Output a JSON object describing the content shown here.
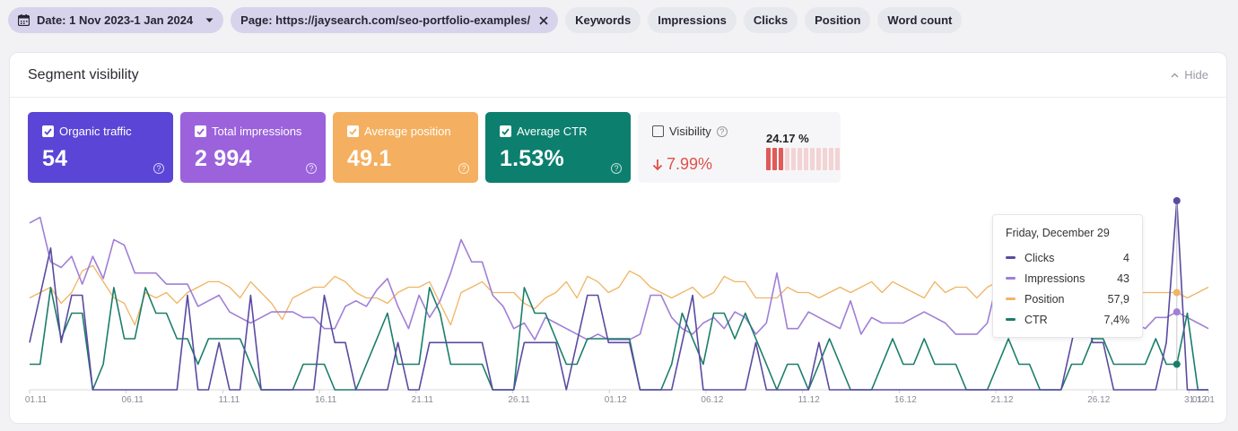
{
  "filters": {
    "date": "Date: 1 Nov 2023-1 Jan 2024",
    "page": "Page: https://jaysearch.com/seo-portfolio-examples/",
    "chips": [
      "Keywords",
      "Impressions",
      "Clicks",
      "Position",
      "Word count"
    ]
  },
  "panel": {
    "title": "Segment visibility",
    "hide_label": "Hide"
  },
  "metrics": [
    {
      "label": "Organic traffic",
      "value": "54",
      "color": "#5b45d6"
    },
    {
      "label": "Total impressions",
      "value": "2 994",
      "color": "#9b62dc"
    },
    {
      "label": "Average position",
      "value": "49.1",
      "color": "#f4b060"
    },
    {
      "label": "Average CTR",
      "value": "1.53%",
      "color": "#0d7f6e"
    }
  ],
  "visibility": {
    "label": "Visibility",
    "change": "7.99%",
    "percent": "24.17 %",
    "level": 0.2417
  },
  "tooltip": {
    "title": "Friday, December 29",
    "rows": [
      {
        "name": "Clicks",
        "value": "4",
        "color": "#5a4aa0"
      },
      {
        "name": "Impressions",
        "value": "43",
        "color": "#a07fd6"
      },
      {
        "name": "Position",
        "value": "57,9",
        "color": "#f0b563"
      },
      {
        "name": "CTR",
        "value": "7,4%",
        "color": "#1a7d6a"
      }
    ]
  },
  "chart_data": {
    "type": "line",
    "x_ticks": [
      "01.11",
      "06.11",
      "11.11",
      "16.11",
      "21.11",
      "26.11",
      "01.12",
      "06.12",
      "11.12",
      "16.12",
      "21.12",
      "26.12",
      "31.12",
      "01.01"
    ],
    "series": [
      {
        "name": "Clicks",
        "color": "#5a4aa0",
        "values": [
          1,
          2,
          3,
          1,
          2,
          2,
          0,
          0,
          0,
          0,
          0,
          0,
          0,
          0,
          0,
          2,
          0,
          0,
          1,
          0,
          0,
          2,
          0,
          0,
          0,
          0,
          0,
          0,
          2,
          1,
          1,
          0,
          0,
          0,
          0,
          1,
          0,
          0,
          1,
          1,
          1,
          1,
          1,
          1,
          0,
          0,
          0,
          1,
          1,
          1,
          1,
          0,
          1,
          2,
          2,
          1,
          1,
          1,
          0,
          0,
          0,
          0,
          1,
          2,
          0,
          0,
          0,
          0,
          0,
          1,
          0,
          0,
          0,
          0,
          0,
          1,
          0,
          0,
          0,
          0,
          0,
          0,
          0,
          0,
          0,
          0,
          0,
          0,
          0,
          0,
          0,
          0,
          0,
          0,
          0,
          0,
          0,
          0,
          0,
          1,
          2,
          1,
          1,
          0,
          0,
          0,
          0,
          0,
          1,
          4,
          0,
          0,
          0
        ]
      },
      {
        "name": "Impressions",
        "color": "#a07fd6",
        "values": [
          30,
          31,
          23,
          22,
          24,
          19,
          24,
          20,
          27,
          26,
          21,
          21,
          21,
          19,
          19,
          19,
          15,
          16,
          17,
          14,
          13,
          12,
          13,
          14,
          14,
          14,
          13,
          13,
          11,
          11,
          15,
          16,
          15,
          18,
          20,
          15,
          11,
          17,
          13,
          16,
          21,
          27,
          23,
          23,
          17,
          15,
          11,
          12,
          9,
          13,
          12,
          11,
          10,
          9,
          10,
          9,
          9,
          9,
          10,
          17,
          17,
          13,
          11,
          10,
          12,
          13,
          11,
          14,
          13,
          10,
          12,
          21,
          11,
          11,
          14,
          13,
          12,
          11,
          16,
          10,
          13,
          12,
          12,
          12,
          13,
          14,
          13,
          12,
          10,
          10,
          10,
          12,
          20,
          16,
          13,
          10,
          10,
          10,
          11,
          13,
          15,
          16,
          17,
          13,
          12,
          12,
          11,
          13,
          13,
          14,
          13,
          12,
          11
        ]
      },
      {
        "name": "Position",
        "color": "#f0b563",
        "values": [
          57,
          58,
          59,
          56,
          58,
          62,
          63,
          60,
          57,
          56,
          52,
          58,
          57,
          58,
          56,
          58,
          59,
          60,
          60,
          59,
          57,
          60,
          58,
          56,
          53,
          57,
          58,
          59,
          59,
          61,
          60,
          58,
          57,
          57,
          56,
          58,
          59,
          59,
          60,
          56,
          52,
          58,
          59,
          60,
          58,
          58,
          58,
          56,
          55,
          57,
          58,
          60,
          57,
          61,
          60,
          58,
          59,
          62,
          61,
          59,
          58,
          57,
          58,
          59,
          57,
          58,
          61,
          60,
          60,
          57,
          57,
          57,
          59,
          58,
          58,
          57,
          58,
          59,
          58,
          59,
          60,
          58,
          60,
          59,
          58,
          57,
          60,
          58,
          59,
          59,
          57,
          59,
          60,
          58,
          58,
          57,
          59,
          62,
          58,
          57,
          59,
          57,
          58,
          58,
          58,
          58,
          58,
          58,
          58,
          58,
          57,
          58,
          59
        ]
      },
      {
        "name": "CTR",
        "color": "#1a7d6a",
        "values": [
          1,
          1,
          4,
          2,
          3,
          3,
          0,
          1,
          4,
          2,
          2,
          4,
          3,
          3,
          2,
          2,
          1,
          2,
          2,
          2,
          2,
          1,
          0,
          0,
          0,
          0,
          1,
          1,
          1,
          0,
          0,
          0,
          1,
          2,
          3,
          1,
          1,
          1,
          4,
          3,
          1,
          1,
          1,
          1,
          0,
          0,
          0,
          4,
          3,
          3,
          2,
          1,
          1,
          2,
          2,
          2,
          2,
          2,
          0,
          0,
          0,
          1,
          3,
          2,
          1,
          3,
          3,
          2,
          3,
          2,
          1,
          0,
          1,
          1,
          0,
          1,
          2,
          1,
          0,
          0,
          0,
          1,
          2,
          1,
          1,
          2,
          1,
          1,
          1,
          0,
          0,
          0,
          1,
          2,
          1,
          1,
          0,
          0,
          0,
          1,
          1,
          2,
          2,
          1,
          1,
          1,
          1,
          2,
          1,
          1,
          3,
          0,
          0
        ]
      }
    ],
    "highlight_x": "29.12",
    "title": "",
    "xlabel": "",
    "ylabel": "",
    "grid": false
  }
}
